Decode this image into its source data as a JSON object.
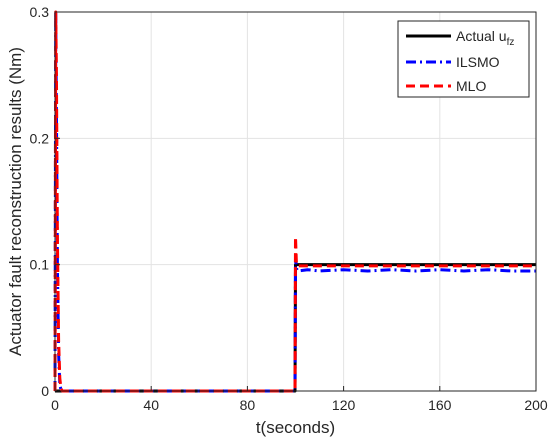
{
  "chart_data": {
    "type": "line",
    "title": "",
    "xlabel": "t(seconds)",
    "ylabel": "Actuator fault reconstruction results (Nm)",
    "xlim": [
      0,
      200
    ],
    "ylim": [
      0,
      0.3
    ],
    "xticks": [
      0,
      40,
      80,
      120,
      160,
      200
    ],
    "yticks": [
      0,
      0.1,
      0.2,
      0.3
    ],
    "xtick_labels": [
      "0",
      "40",
      "80",
      "120",
      "160",
      "200"
    ],
    "ytick_labels": [
      "0",
      "0.1",
      "0.2",
      "0.3"
    ],
    "grid": true,
    "legend_position": "top-right",
    "series": [
      {
        "name": "Actual u",
        "name_subscript": "fz",
        "color": "#000000",
        "style": "solid",
        "x": [
          0,
          99.8,
          100,
          200
        ],
        "y": [
          0,
          0,
          0.1,
          0.1
        ]
      },
      {
        "name": "ILSMO",
        "color": "#0000ff",
        "style": "dashdot",
        "x": [
          0,
          0.3,
          0.6,
          1.0,
          1.5,
          2.0,
          2.5,
          3.0,
          99.8,
          100.0,
          100.4,
          101,
          105,
          110,
          120,
          130,
          140,
          150,
          160,
          170,
          180,
          190,
          200
        ],
        "y": [
          0,
          0.3,
          0.22,
          0.1,
          0.03,
          0.005,
          0.001,
          0,
          0,
          0.105,
          0.097,
          0.095,
          0.096,
          0.095,
          0.096,
          0.095,
          0.096,
          0.095,
          0.096,
          0.095,
          0.096,
          0.095,
          0.095
        ]
      },
      {
        "name": "MLO",
        "color": "#ff0000",
        "style": "dashed",
        "x": [
          0,
          0.3,
          0.6,
          1.0,
          1.5,
          2.0,
          2.5,
          3.0,
          99.8,
          100.0,
          100.4,
          101,
          105,
          110,
          120,
          130,
          140,
          150,
          160,
          170,
          180,
          190,
          200
        ],
        "y": [
          0,
          0.3,
          0.25,
          0.12,
          0.04,
          0.01,
          0.002,
          0,
          0,
          0.122,
          0.1,
          0.099,
          0.099,
          0.099,
          0.099,
          0.099,
          0.099,
          0.099,
          0.099,
          0.099,
          0.099,
          0.099,
          0.099
        ]
      }
    ]
  }
}
